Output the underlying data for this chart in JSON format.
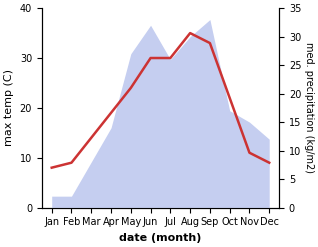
{
  "months": [
    "Jan",
    "Feb",
    "Mar",
    "Apr",
    "May",
    "Jun",
    "Jul",
    "Aug",
    "Sep",
    "Oct",
    "Nov",
    "Dec"
  ],
  "temperature": [
    8,
    9,
    14,
    19,
    24,
    30,
    30,
    35,
    33,
    22,
    11,
    9
  ],
  "precipitation": [
    2,
    2,
    8,
    14,
    27,
    32,
    26,
    30,
    33,
    17,
    15,
    12
  ],
  "temp_color": "#cc3333",
  "precip_fill_color": "#c5cef0",
  "ylabel_left": "max temp (C)",
  "ylabel_right": "med. precipitation (kg/m2)",
  "xlabel": "date (month)",
  "ylim_left": [
    0,
    40
  ],
  "ylim_right": [
    0,
    35
  ],
  "label_fontsize": 8,
  "tick_fontsize": 7,
  "line_width": 1.8
}
